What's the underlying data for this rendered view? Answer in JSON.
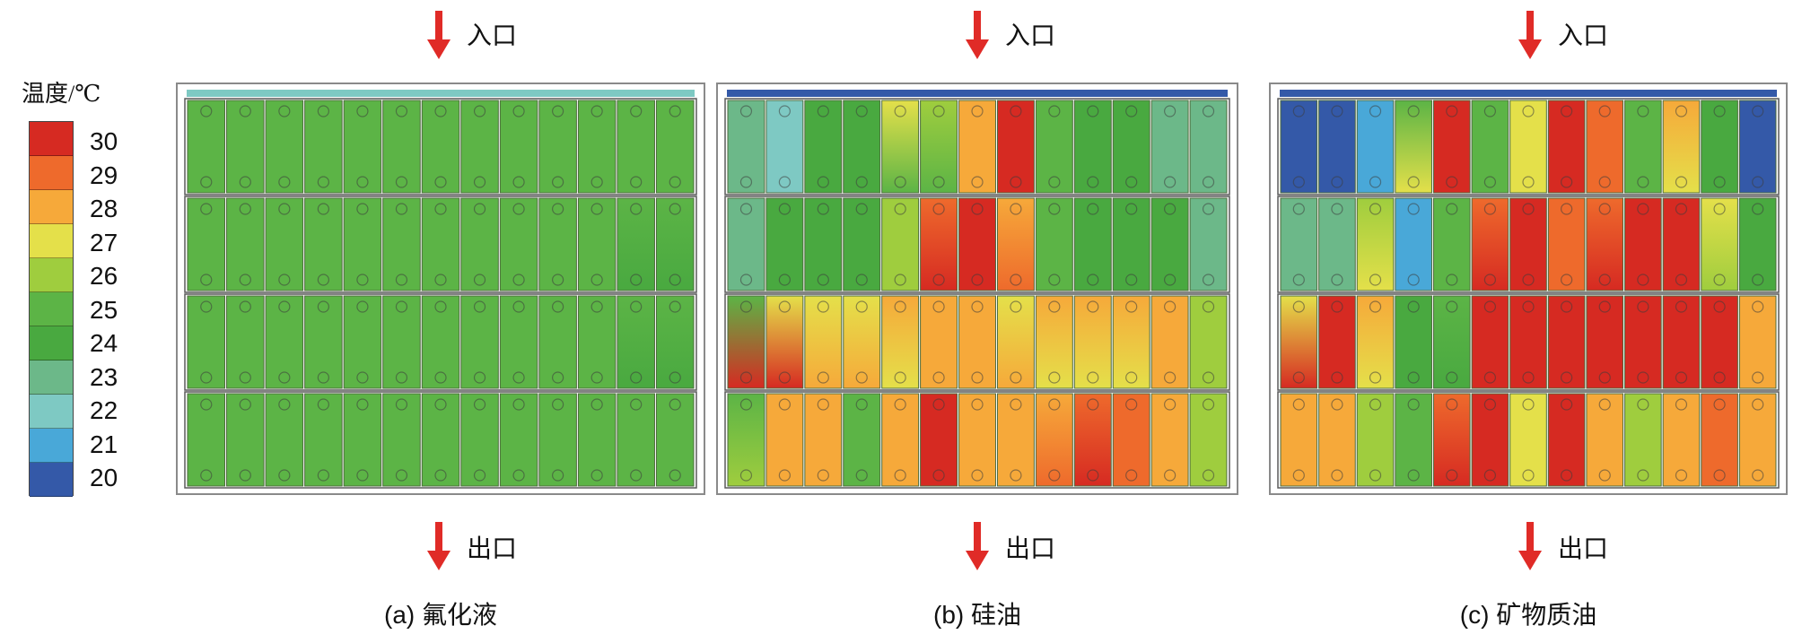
{
  "legend": {
    "title": "温度/℃",
    "ticks": [
      "30",
      "29",
      "28",
      "27",
      "26",
      "25",
      "24",
      "23",
      "22",
      "21",
      "20"
    ],
    "colors": [
      "#d62a22",
      "#ee6a2c",
      "#f6a93a",
      "#e4e04a",
      "#9fcd3e",
      "#5cb446",
      "#49a940",
      "#6cb889",
      "#7ec9c3",
      "#49a8d8",
      "#3459a8"
    ]
  },
  "ports": {
    "inlet": "入口",
    "outlet": "出口",
    "arrow_color": "#e02b27"
  },
  "panels": [
    {
      "label": "(a) 氟化液"
    },
    {
      "label": "(b) 硅油"
    },
    {
      "label": "(c) 矿物质油"
    }
  ]
}
